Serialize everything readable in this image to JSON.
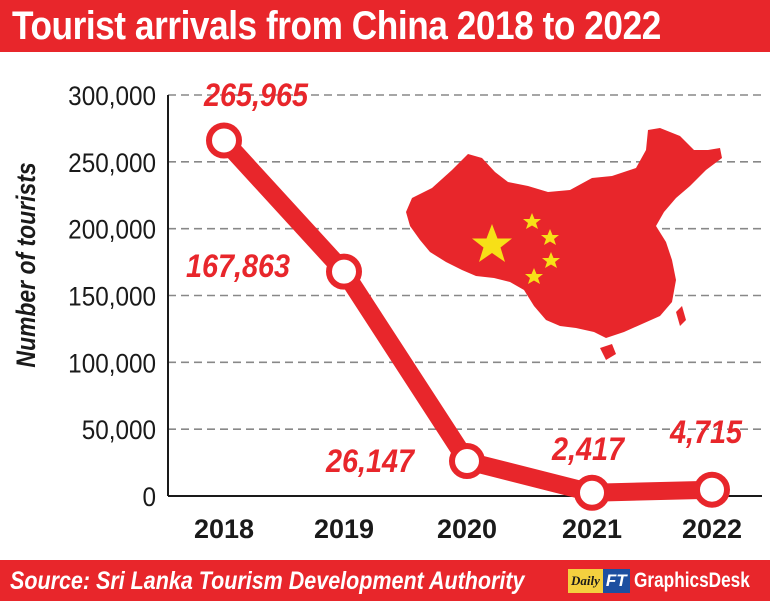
{
  "header": {
    "title": "Tourist arrivals from China 2018 to 2022"
  },
  "footer": {
    "source": "Source: Sri Lanka Tourism Development Authority",
    "logo_daily": "Daily",
    "logo_ft": "FT",
    "credit": "GraphicsDesk"
  },
  "colors": {
    "brand_red": "#e8262b",
    "grid": "#888888",
    "star_yellow": "#f7e017"
  },
  "illustration": {
    "icon": "china-map-flag-icon"
  },
  "chart_data": {
    "type": "line",
    "title": "Tourist arrivals from China 2018 to 2022",
    "xlabel": "",
    "ylabel": "Number of tourists",
    "categories": [
      "2018",
      "2019",
      "2020",
      "2021",
      "2022"
    ],
    "series": [
      {
        "values": [
          265965,
          167863,
          26147,
          2417,
          4715
        ]
      }
    ],
    "data_labels": [
      "265,965",
      "167,863",
      "26,147",
      "2,417",
      "4,715"
    ],
    "yticks": [
      0,
      50000,
      100000,
      150000,
      200000,
      250000,
      300000
    ],
    "ytick_labels": [
      "0",
      "50,000",
      "100,000",
      "150,000",
      "200,000",
      "250,000",
      "300,000"
    ],
    "ylim": [
      0,
      300000
    ],
    "grid": "horizontal dashed",
    "legend": "none"
  }
}
